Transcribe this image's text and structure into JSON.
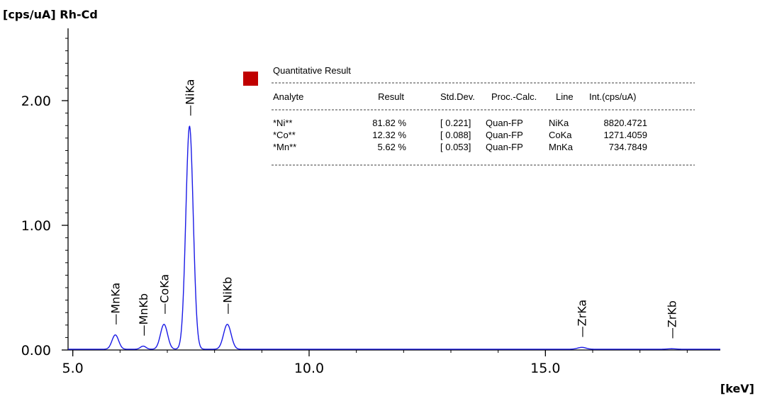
{
  "chart_data": {
    "type": "line",
    "title": "",
    "ylabel": "[cps/uA] Rh-Cd",
    "xlabel": "[keV]",
    "xlim": [
      4.9,
      18.7
    ],
    "ylim": [
      0,
      2.58
    ],
    "x_ticks": [
      {
        "value": 5.0,
        "label": "5.0"
      },
      {
        "value": 10.0,
        "label": "10.0"
      },
      {
        "value": 15.0,
        "label": "15.0"
      }
    ],
    "y_ticks": [
      {
        "value": 0.0,
        "label": "0.00"
      },
      {
        "value": 1.0,
        "label": "1.00"
      },
      {
        "value": 2.0,
        "label": "2.00"
      }
    ],
    "y_minor_step": 0.1,
    "x_minor_step": 1.0,
    "line_color": "#1a1ae6",
    "marker_color": "#c00000",
    "baseline": 0.006,
    "peaks": [
      {
        "center": 5.9,
        "height": 0.115,
        "width": 0.07
      },
      {
        "center": 6.49,
        "height": 0.025,
        "width": 0.06
      },
      {
        "center": 6.93,
        "height": 0.2,
        "width": 0.075
      },
      {
        "center": 7.47,
        "height": 1.79,
        "width": 0.078
      },
      {
        "center": 8.27,
        "height": 0.2,
        "width": 0.08
      },
      {
        "center": 15.77,
        "height": 0.015,
        "width": 0.09
      },
      {
        "center": 17.67,
        "height": 0.004,
        "width": 0.09
      }
    ],
    "peak_labels": [
      {
        "label": "MnKa",
        "energy": 5.9
      },
      {
        "label": "MnKb",
        "energy": 6.49
      },
      {
        "label": "CoKa",
        "energy": 6.93
      },
      {
        "label": "NiKa",
        "energy": 7.47
      },
      {
        "label": "NiKb",
        "energy": 8.27
      },
      {
        "label": "ZrKa",
        "energy": 15.77
      },
      {
        "label": "ZrKb",
        "energy": 17.67
      }
    ],
    "result_table": {
      "title": "Quantitative Result",
      "headers": [
        "Analyte",
        "Result",
        "Std.Dev.",
        "Proc.-Calc.",
        "Line",
        "Int.(cps/uA)"
      ],
      "rows": [
        {
          "analyte": "*Ni**",
          "result": "81.82 %",
          "stddev": "[ 0.221]",
          "proc": "Quan-FP",
          "line": "NiKa",
          "intensity": "8820.4721"
        },
        {
          "analyte": "*Co**",
          "result": "12.32 %",
          "stddev": "[ 0.088]",
          "proc": "Quan-FP",
          "line": "CoKa",
          "intensity": "1271.4059"
        },
        {
          "analyte": "*Mn**",
          "result": "5.62 %",
          "stddev": "[ 0.053]",
          "proc": "Quan-FP",
          "line": "MnKa",
          "intensity": "734.7849"
        }
      ]
    }
  }
}
